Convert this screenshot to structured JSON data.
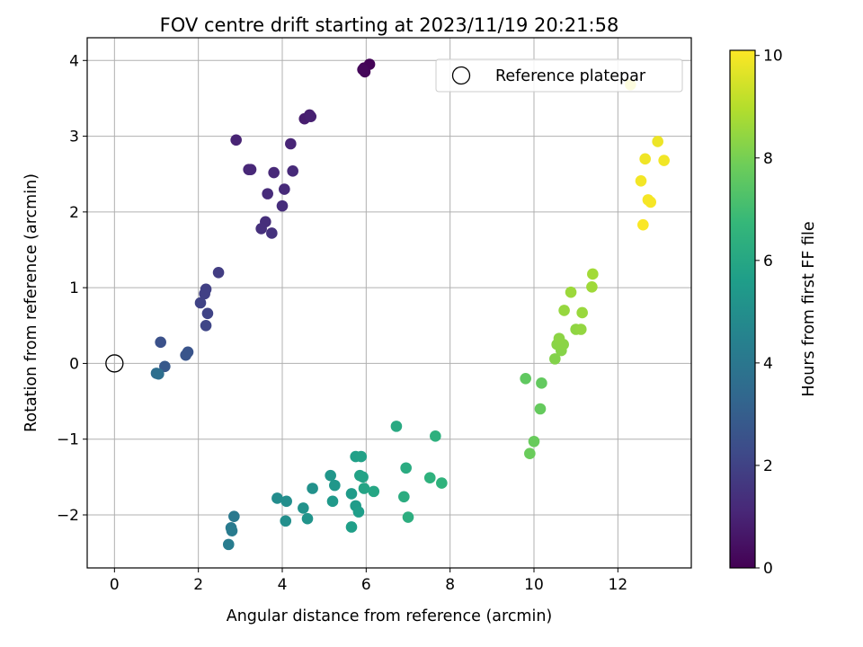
{
  "chart_data": {
    "type": "scatter",
    "title": "FOV centre drift starting at 2023/11/19 20:21:58",
    "xlabel": "Angular distance from reference (arcmin)",
    "ylabel": "Rotation from reference (arcmin)",
    "xlim": [
      -0.65,
      13.75
    ],
    "ylim": [
      -2.7,
      4.3
    ],
    "xticks": [
      0,
      2,
      4,
      6,
      8,
      10,
      12
    ],
    "yticks": [
      -2,
      -1,
      0,
      1,
      2,
      3,
      4
    ],
    "grid": true,
    "legend": {
      "location": "top-right",
      "entries": [
        "Reference platepar"
      ]
    },
    "colorbar": {
      "label": "Hours from first FF file",
      "min": 0,
      "max": 10.1,
      "ticks": [
        0,
        2,
        4,
        6,
        8,
        10
      ],
      "colormap": "viridis"
    },
    "reference_point": {
      "x": 0,
      "y": 0,
      "label": "Reference platepar"
    },
    "points": [
      {
        "x": 5.95,
        "y": 3.9,
        "c": 0.05
      },
      {
        "x": 6.08,
        "y": 3.95,
        "c": 0.1
      },
      {
        "x": 5.97,
        "y": 3.85,
        "c": 0.15
      },
      {
        "x": 5.92,
        "y": 3.88,
        "c": 0.2
      },
      {
        "x": 4.53,
        "y": 3.23,
        "c": 0.8
      },
      {
        "x": 4.65,
        "y": 3.28,
        "c": 0.85
      },
      {
        "x": 4.68,
        "y": 3.26,
        "c": 0.9
      },
      {
        "x": 2.9,
        "y": 2.95,
        "c": 1.0
      },
      {
        "x": 4.2,
        "y": 2.9,
        "c": 1.05
      },
      {
        "x": 3.2,
        "y": 2.56,
        "c": 1.1
      },
      {
        "x": 3.25,
        "y": 2.56,
        "c": 1.12
      },
      {
        "x": 3.8,
        "y": 2.52,
        "c": 1.15
      },
      {
        "x": 4.25,
        "y": 2.54,
        "c": 1.18
      },
      {
        "x": 4.05,
        "y": 2.3,
        "c": 1.2
      },
      {
        "x": 3.65,
        "y": 2.24,
        "c": 1.25
      },
      {
        "x": 4.0,
        "y": 2.08,
        "c": 1.3
      },
      {
        "x": 3.6,
        "y": 1.87,
        "c": 1.35
      },
      {
        "x": 3.5,
        "y": 1.78,
        "c": 1.4
      },
      {
        "x": 3.75,
        "y": 1.72,
        "c": 1.45
      },
      {
        "x": 2.48,
        "y": 1.2,
        "c": 1.8
      },
      {
        "x": 2.18,
        "y": 0.98,
        "c": 1.9
      },
      {
        "x": 2.15,
        "y": 0.92,
        "c": 1.95
      },
      {
        "x": 2.05,
        "y": 0.8,
        "c": 2.0
      },
      {
        "x": 2.22,
        "y": 0.66,
        "c": 2.05
      },
      {
        "x": 2.18,
        "y": 0.5,
        "c": 2.1
      },
      {
        "x": 1.1,
        "y": 0.28,
        "c": 2.5
      },
      {
        "x": 1.75,
        "y": 0.15,
        "c": 2.6
      },
      {
        "x": 1.7,
        "y": 0.11,
        "c": 2.65
      },
      {
        "x": 1.2,
        "y": -0.04,
        "c": 2.8
      },
      {
        "x": 1.0,
        "y": -0.13,
        "c": 3.6
      },
      {
        "x": 1.05,
        "y": -0.14,
        "c": 3.65
      },
      {
        "x": 2.85,
        "y": -2.02,
        "c": 4.1
      },
      {
        "x": 2.78,
        "y": -2.17,
        "c": 4.15
      },
      {
        "x": 2.8,
        "y": -2.21,
        "c": 4.2
      },
      {
        "x": 2.72,
        "y": -2.39,
        "c": 4.25
      },
      {
        "x": 3.88,
        "y": -1.78,
        "c": 4.9
      },
      {
        "x": 4.1,
        "y": -1.82,
        "c": 4.95
      },
      {
        "x": 4.08,
        "y": -2.08,
        "c": 5.0
      },
      {
        "x": 4.72,
        "y": -1.65,
        "c": 5.1
      },
      {
        "x": 4.5,
        "y": -1.91,
        "c": 5.15
      },
      {
        "x": 4.6,
        "y": -2.05,
        "c": 5.2
      },
      {
        "x": 5.15,
        "y": -1.48,
        "c": 5.3
      },
      {
        "x": 5.25,
        "y": -1.61,
        "c": 5.35
      },
      {
        "x": 5.2,
        "y": -1.82,
        "c": 5.4
      },
      {
        "x": 5.65,
        "y": -1.72,
        "c": 5.5
      },
      {
        "x": 5.75,
        "y": -1.88,
        "c": 5.55
      },
      {
        "x": 5.82,
        "y": -1.96,
        "c": 5.6
      },
      {
        "x": 5.65,
        "y": -2.16,
        "c": 5.65
      },
      {
        "x": 5.75,
        "y": -1.23,
        "c": 5.7
      },
      {
        "x": 5.88,
        "y": -1.23,
        "c": 5.75
      },
      {
        "x": 5.85,
        "y": -1.48,
        "c": 5.8
      },
      {
        "x": 5.92,
        "y": -1.5,
        "c": 5.85
      },
      {
        "x": 5.95,
        "y": -1.65,
        "c": 5.9
      },
      {
        "x": 6.18,
        "y": -1.69,
        "c": 5.95
      },
      {
        "x": 6.72,
        "y": -0.83,
        "c": 6.1
      },
      {
        "x": 6.95,
        "y": -1.38,
        "c": 6.2
      },
      {
        "x": 6.9,
        "y": -1.76,
        "c": 6.25
      },
      {
        "x": 7.0,
        "y": -2.03,
        "c": 6.3
      },
      {
        "x": 7.65,
        "y": -0.96,
        "c": 6.4
      },
      {
        "x": 7.52,
        "y": -1.51,
        "c": 6.45
      },
      {
        "x": 7.8,
        "y": -1.58,
        "c": 6.5
      },
      {
        "x": 9.8,
        "y": -0.2,
        "c": 7.6
      },
      {
        "x": 10.18,
        "y": -0.26,
        "c": 7.65
      },
      {
        "x": 10.15,
        "y": -0.6,
        "c": 7.7
      },
      {
        "x": 10.0,
        "y": -1.03,
        "c": 7.75
      },
      {
        "x": 9.9,
        "y": -1.19,
        "c": 7.8
      },
      {
        "x": 10.5,
        "y": 0.06,
        "c": 8.2
      },
      {
        "x": 10.65,
        "y": 0.17,
        "c": 8.25
      },
      {
        "x": 10.55,
        "y": 0.25,
        "c": 8.3
      },
      {
        "x": 10.7,
        "y": 0.25,
        "c": 8.32
      },
      {
        "x": 10.6,
        "y": 0.33,
        "c": 8.35
      },
      {
        "x": 11.0,
        "y": 0.45,
        "c": 8.4
      },
      {
        "x": 11.12,
        "y": 0.45,
        "c": 8.45
      },
      {
        "x": 10.72,
        "y": 0.7,
        "c": 8.5
      },
      {
        "x": 11.15,
        "y": 0.67,
        "c": 8.55
      },
      {
        "x": 10.88,
        "y": 0.94,
        "c": 8.6
      },
      {
        "x": 11.38,
        "y": 1.01,
        "c": 8.65
      },
      {
        "x": 11.4,
        "y": 1.18,
        "c": 8.7
      },
      {
        "x": 12.3,
        "y": 3.68,
        "c": 9.8
      },
      {
        "x": 12.95,
        "y": 2.93,
        "c": 9.85
      },
      {
        "x": 12.65,
        "y": 2.7,
        "c": 9.9
      },
      {
        "x": 13.1,
        "y": 2.68,
        "c": 9.92
      },
      {
        "x": 12.55,
        "y": 2.41,
        "c": 9.95
      },
      {
        "x": 12.72,
        "y": 2.16,
        "c": 9.97
      },
      {
        "x": 12.78,
        "y": 2.13,
        "c": 10.0
      },
      {
        "x": 12.6,
        "y": 1.83,
        "c": 10.05
      }
    ]
  }
}
